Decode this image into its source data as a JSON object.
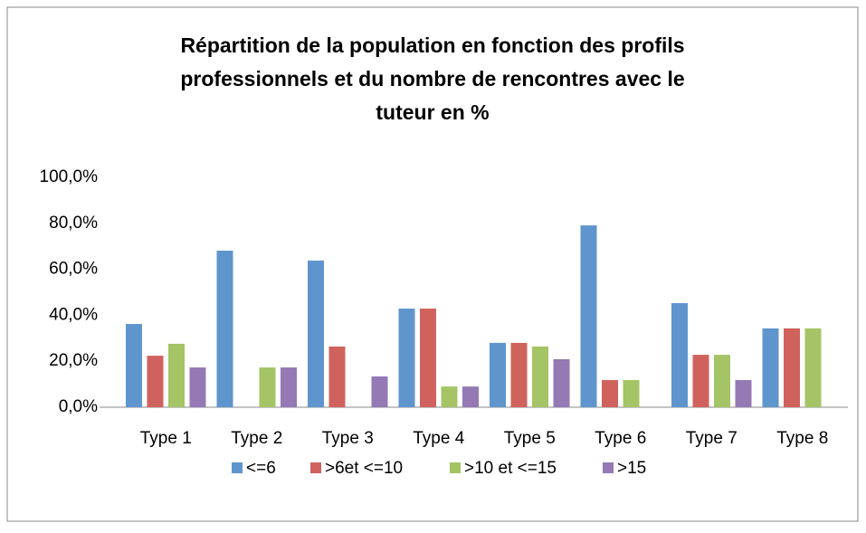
{
  "chart_data": {
    "type": "bar",
    "title": [
      "Répartition de la population en fonction des profils",
      "professionnels et du nombre de rencontres avec le",
      "tuteur en %"
    ],
    "categories": [
      "Type 1",
      "Type 2",
      "Type 3",
      "Type 4",
      "Type 5",
      "Type 6",
      "Type 7",
      "Type 8"
    ],
    "series": [
      {
        "name": "<=6",
        "color": "#5f95cd",
        "values": [
          36.2,
          68.1,
          63.8,
          42.9,
          28,
          79.1,
          45.3,
          34.3
        ]
      },
      {
        "name": ">6et <=10",
        "color": "#d0625e",
        "values": [
          22.4,
          0,
          26.4,
          42.9,
          28,
          11.8,
          22.8,
          34.3
        ]
      },
      {
        "name": ">10 et <=15",
        "color": "#a4c466",
        "values": [
          27.6,
          17.3,
          0,
          9,
          26.4,
          11.8,
          22.8,
          34.3
        ]
      },
      {
        "name": ">15",
        "color": "#9479b5",
        "values": [
          17.3,
          17.3,
          13.4,
          9,
          20.9,
          0,
          11.8,
          0
        ]
      }
    ],
    "ylim": [
      0,
      100
    ],
    "yticks": [
      {
        "value": 0,
        "label": "0,0%"
      },
      {
        "value": 20,
        "label": "20,0%"
      },
      {
        "value": 40,
        "label": "40,0%"
      },
      {
        "value": 60,
        "label": "60,0%"
      },
      {
        "value": 80,
        "label": "80,0%"
      },
      {
        "value": 100,
        "label": "100,0%"
      }
    ],
    "grid": false,
    "legend": "bottom"
  }
}
